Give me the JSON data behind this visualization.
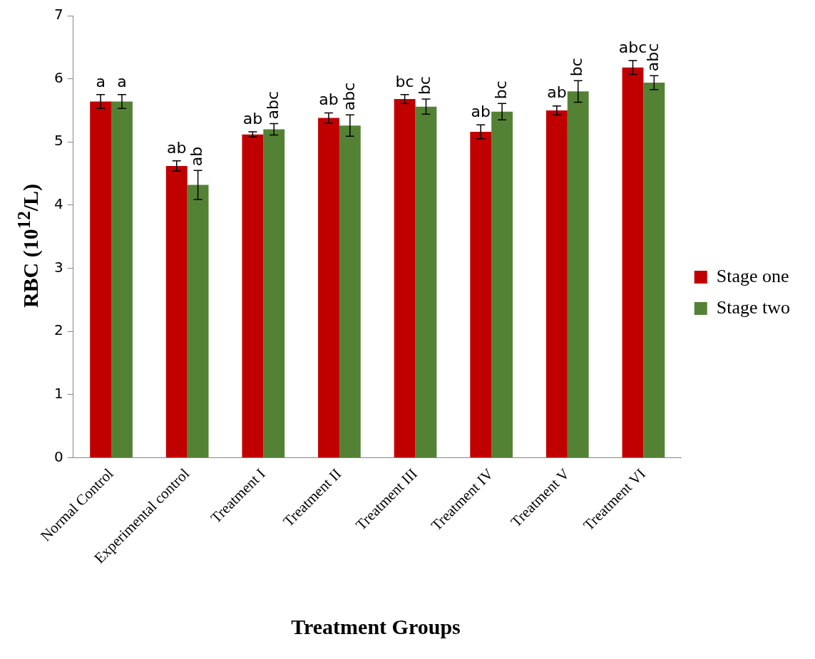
{
  "chart_data": {
    "type": "bar",
    "xlabel": "Treatment Groups",
    "ylabel": "RBC (10$^{12}$/L)",
    "categories": [
      "Normal Control",
      "Experimental control",
      "Treatment I",
      "Treatment II",
      "Treatment III",
      "Treatment IV",
      "Treatment V",
      "Treatment VI"
    ],
    "series": [
      {
        "name": "Stage one",
        "color": "#c00000",
        "values": [
          5.64,
          4.62,
          5.12,
          5.38,
          5.68,
          5.16,
          5.5,
          6.18
        ],
        "errors": [
          0.11,
          0.08,
          0.04,
          0.08,
          0.07,
          0.11,
          0.07,
          0.11
        ]
      },
      {
        "name": "Stage two",
        "color": "#548235",
        "values": [
          5.64,
          4.32,
          5.2,
          5.26,
          5.56,
          5.48,
          5.8,
          5.94
        ],
        "errors": [
          0.11,
          0.23,
          0.09,
          0.17,
          0.12,
          0.13,
          0.17,
          0.11
        ]
      }
    ],
    "ylim": [
      0,
      7
    ],
    "yticks": [
      0,
      1,
      2,
      3,
      4,
      5,
      6,
      7
    ],
    "grid": false,
    "legend": "right",
    "annotations": [
      "a",
      "a",
      "ab",
      "ab",
      "ab",
      "abc",
      "ab",
      "abc",
      "bc",
      "bc",
      "ab",
      "bc",
      "ab",
      "bc",
      "abc",
      "abc"
    ]
  }
}
